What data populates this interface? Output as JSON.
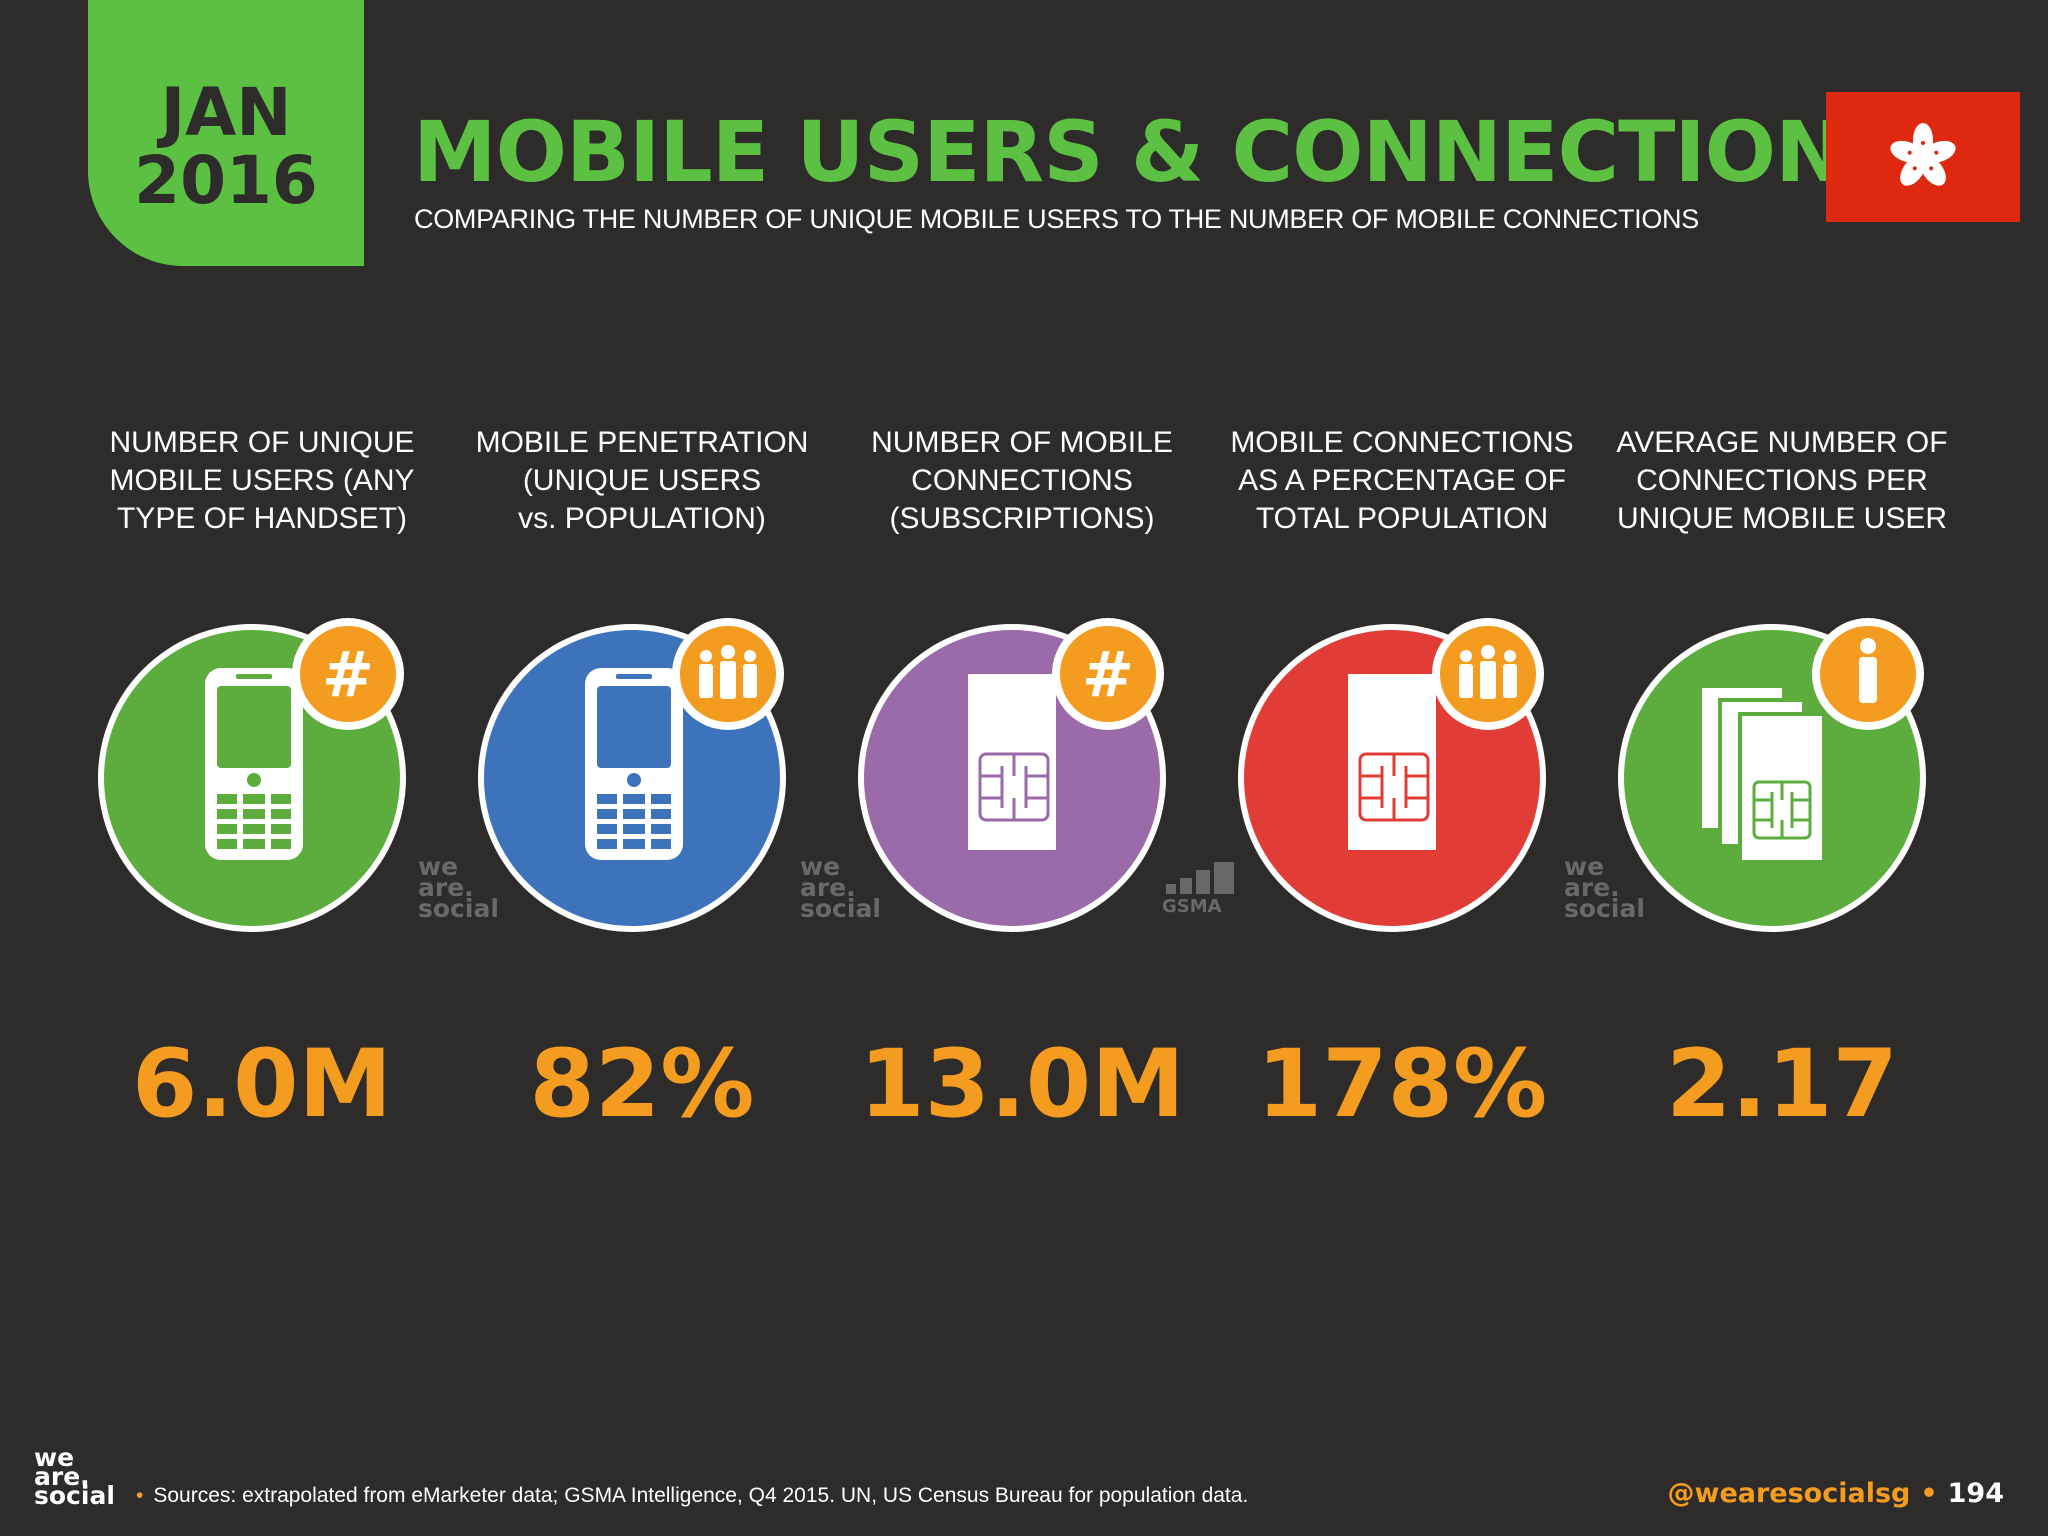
{
  "header": {
    "date_line1": "JAN",
    "date_line2": "2016",
    "title": "MOBILE USERS & CONNECTIONS",
    "subtitle": "COMPARING THE NUMBER OF UNIQUE MOBILE USERS TO THE NUMBER OF MOBILE CONNECTIONS"
  },
  "flag": {
    "country": "Hong Kong",
    "icon": "hong-kong-flag-icon",
    "color": "#de2910"
  },
  "stats": [
    {
      "label_lines": [
        "NUMBER OF UNIQUE",
        "MOBILE USERS (ANY",
        "TYPE OF HANDSET)"
      ],
      "value": "6.0M",
      "circle_color": "#5cad3e",
      "main_icon": "mobile-phone-icon",
      "badge_icon": "hash-icon"
    },
    {
      "label_lines": [
        "MOBILE PENETRATION",
        "(UNIQUE USERS",
        "vs. POPULATION)"
      ],
      "value": "82%",
      "circle_color": "#3d73bb",
      "main_icon": "mobile-phone-icon",
      "badge_icon": "people-icon"
    },
    {
      "label_lines": [
        "NUMBER OF MOBILE",
        "CONNECTIONS",
        "(SUBSCRIPTIONS)"
      ],
      "value": "13.0M",
      "circle_color": "#9b6aa9",
      "main_icon": "sim-card-icon",
      "badge_icon": "hash-icon"
    },
    {
      "label_lines": [
        "MOBILE CONNECTIONS",
        "AS A PERCENTAGE OF",
        "TOTAL POPULATION"
      ],
      "value": "178%",
      "circle_color": "#e13c36",
      "main_icon": "sim-card-icon",
      "badge_icon": "people-icon"
    },
    {
      "label_lines": [
        "AVERAGE NUMBER OF",
        "CONNECTIONS PER",
        "UNIQUE MOBILE USER"
      ],
      "value": "2.17",
      "circle_color": "#5cad3e",
      "main_icon": "sim-cards-stack-icon",
      "badge_icon": "person-icon"
    }
  ],
  "watermark": {
    "line1": "we",
    "line2": "are.",
    "line3": "social",
    "gsma": "GSMA"
  },
  "footer": {
    "logo_line1": "we",
    "logo_line2": "are.",
    "logo_line3": "social",
    "bullet": "•",
    "sources": "Sources: extrapolated from eMarketer data; GSMA Intelligence, Q4 2015. UN, US Census Bureau for population data.",
    "handle": "@wearesocialsg",
    "page": "194"
  },
  "colors": {
    "background": "#2e2b2b",
    "accent_green": "#5cc142",
    "accent_orange": "#f39c1f"
  }
}
